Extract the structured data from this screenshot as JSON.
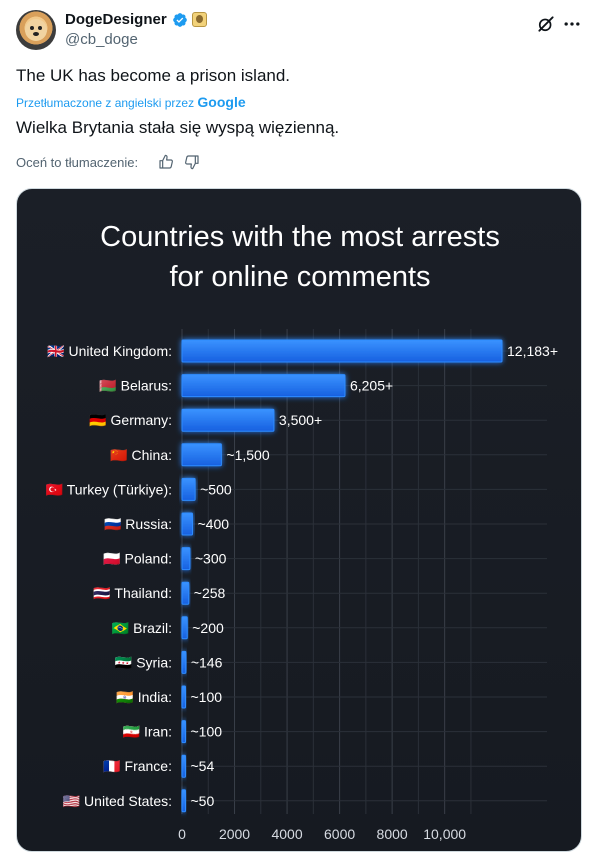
{
  "tweet": {
    "author_name": "DogeDesigner",
    "author_handle": "@cb_doge",
    "text": "The UK has become a prison island.",
    "translated_by_label": "Przetłumaczone z angielski przez",
    "translated_by_brand": "Google",
    "translation": "Wielka Brytania stała się wyspą więzienną.",
    "rate_translation_label": "Oceń to tłumaczenie:",
    "icons": [
      "verified-badge-icon",
      "affiliate-badge-icon",
      "grok-icon",
      "more-icon",
      "thumbs-up-icon",
      "thumbs-down-icon"
    ]
  },
  "colors": {
    "accent": "#1d9bf0",
    "chart_background": "#181c23",
    "bar": "#1f73f2",
    "bar_glow": "#2f8cff"
  },
  "chart_data": {
    "type": "bar",
    "orientation": "horizontal",
    "title_lines": [
      "Countries with the most arrests",
      "for online comments"
    ],
    "categories": [
      "United Kingdom:",
      "Belarus:",
      "Germany:",
      "China:",
      "Turkey (Türkiye):",
      "Russia:",
      "Poland:",
      "Thailand:",
      "Brazil:",
      "Syria:",
      "India:",
      "Iran:",
      "France:",
      "United States:"
    ],
    "values": [
      12183,
      6205,
      3500,
      1500,
      500,
      400,
      300,
      258,
      200,
      146,
      100,
      100,
      54,
      50
    ],
    "value_labels": [
      "12,183+",
      "6,205+",
      "3,500+",
      "~1,500",
      "~500",
      "~400",
      "~300",
      "~258",
      "~200",
      "~146",
      "~100",
      "~100",
      "~54",
      "~50"
    ],
    "flags": [
      "🇬🇧",
      "🇧🇾",
      "🇩🇪",
      "🇨🇳",
      "🇹🇷",
      "🇷🇺",
      "🇵🇱",
      "🇹🇭",
      "🇧🇷",
      "🇸🇾",
      "🇮🇳",
      "🇮🇷",
      "🇫🇷",
      "🇺🇸"
    ],
    "x_ticks": [
      "0",
      "2000",
      "4000",
      "6000",
      "8000",
      "10,000"
    ],
    "xlim": [
      0,
      12183
    ],
    "grid": true
  }
}
